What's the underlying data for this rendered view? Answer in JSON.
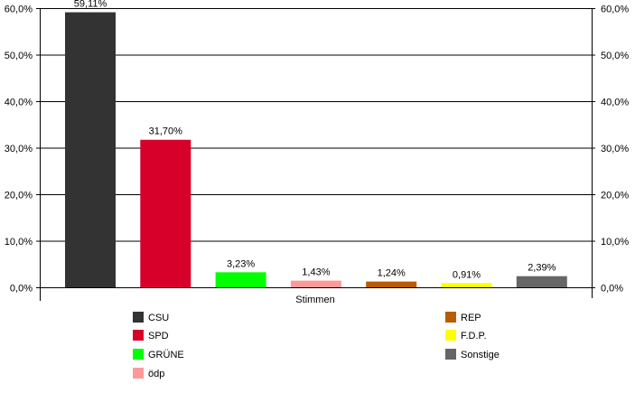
{
  "chart_data": {
    "type": "bar",
    "title": "",
    "xlabel": "Stimmen",
    "ylabel": "",
    "ylim": [
      0,
      60
    ],
    "yticks": [
      "0,0%",
      "10,0%",
      "20,0%",
      "30,0%",
      "40,0%",
      "50,0%",
      "60,0%"
    ],
    "grid": true,
    "legend_placement": "bottom",
    "categories": [
      "CSU",
      "SPD",
      "GRÜNE",
      "ödp",
      "REP",
      "F.D.P.",
      "Sonstige"
    ],
    "values": [
      59.11,
      31.7,
      3.23,
      1.43,
      1.24,
      0.91,
      2.39
    ],
    "labels": [
      "59,11%",
      "31,70%",
      "3,23%",
      "1,43%",
      "1,24%",
      "0,91%",
      "2,39%"
    ],
    "colors": [
      "#333333",
      "#d6002a",
      "#00ff00",
      "#ff9999",
      "#b85c00",
      "#ffff00",
      "#666666"
    ]
  }
}
